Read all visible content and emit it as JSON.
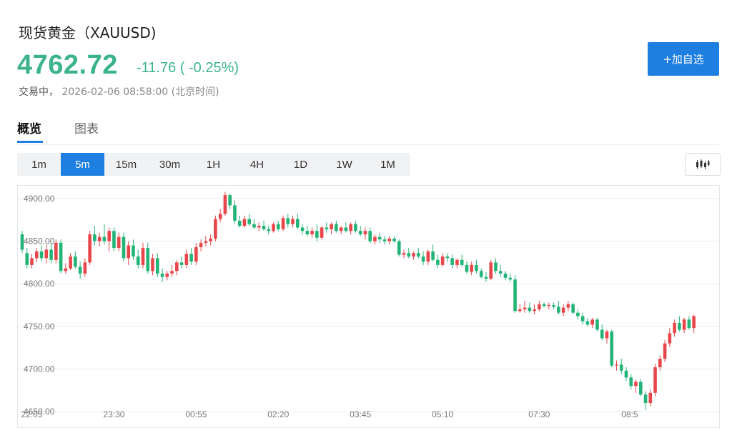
{
  "header": {
    "title": "现货黄金（XAUUSD)",
    "price": "4762.72",
    "change": "-11.76 ( -0.25%)",
    "status_label": "交易中，",
    "datetime": "2026-02-06 08:58:00",
    "timezone": "(北京时间)",
    "add_button": "+加自选"
  },
  "tabs": [
    {
      "label": "概览",
      "active": true
    },
    {
      "label": "图表",
      "active": false
    }
  ],
  "intervals": [
    {
      "label": "1m",
      "active": false
    },
    {
      "label": "5m",
      "active": true
    },
    {
      "label": "15m",
      "active": false
    },
    {
      "label": "30m",
      "active": false
    },
    {
      "label": "1H",
      "active": false
    },
    {
      "label": "4H",
      "active": false
    },
    {
      "label": "1D",
      "active": false
    },
    {
      "label": "1W",
      "active": false
    },
    {
      "label": "1M",
      "active": false
    }
  ],
  "chart_type_icon": "candlestick-icon",
  "colors": {
    "up": "#e8464a",
    "down": "#22b476",
    "accent": "#1e7fe0",
    "price": "#3cb48b"
  },
  "chart_data": {
    "type": "candlestick",
    "ylim": [
      4650,
      4915
    ],
    "y_ticks": [
      "4900.00",
      "4850.00",
      "4800.00",
      "4750.00",
      "4700.00",
      "4650.00"
    ],
    "y_tick_values": [
      4900,
      4850,
      4800,
      4750,
      4700,
      4650
    ],
    "x_ticks": [
      "22:05",
      "23:30",
      "00:55",
      "02:20",
      "03:45",
      "05:10",
      "07:30",
      "08:5"
    ],
    "x_tick_index": [
      2,
      19,
      36,
      53,
      70,
      87,
      107,
      124
    ],
    "candles": [
      [
        4858,
        4862,
        4836,
        4840
      ],
      [
        4836,
        4842,
        4818,
        4822
      ],
      [
        4822,
        4835,
        4818,
        4830
      ],
      [
        4830,
        4842,
        4825,
        4838
      ],
      [
        4838,
        4845,
        4826,
        4830
      ],
      [
        4830,
        4846,
        4824,
        4840
      ],
      [
        4840,
        4848,
        4824,
        4828
      ],
      [
        4828,
        4852,
        4824,
        4848
      ],
      [
        4848,
        4852,
        4812,
        4815
      ],
      [
        4815,
        4824,
        4812,
        4818
      ],
      [
        4818,
        4836,
        4816,
        4832
      ],
      [
        4832,
        4838,
        4818,
        4820
      ],
      [
        4820,
        4826,
        4806,
        4812
      ],
      [
        4812,
        4830,
        4808,
        4825
      ],
      [
        4825,
        4862,
        4822,
        4858
      ],
      [
        4858,
        4868,
        4845,
        4850
      ],
      [
        4850,
        4860,
        4844,
        4855
      ],
      [
        4855,
        4870,
        4846,
        4850
      ],
      [
        4850,
        4866,
        4838,
        4862
      ],
      [
        4862,
        4866,
        4838,
        4842
      ],
      [
        4842,
        4860,
        4838,
        4855
      ],
      [
        4855,
        4860,
        4826,
        4830
      ],
      [
        4830,
        4850,
        4822,
        4845
      ],
      [
        4845,
        4852,
        4828,
        4832
      ],
      [
        4832,
        4840,
        4818,
        4822
      ],
      [
        4822,
        4848,
        4818,
        4842
      ],
      [
        4842,
        4848,
        4812,
        4815
      ],
      [
        4815,
        4835,
        4810,
        4830
      ],
      [
        4830,
        4836,
        4808,
        4812
      ],
      [
        4812,
        4818,
        4802,
        4808
      ],
      [
        4808,
        4815,
        4804,
        4812
      ],
      [
        4812,
        4822,
        4808,
        4815
      ],
      [
        4815,
        4828,
        4810,
        4825
      ],
      [
        4825,
        4832,
        4818,
        4822
      ],
      [
        4822,
        4840,
        4818,
        4835
      ],
      [
        4835,
        4842,
        4822,
        4826
      ],
      [
        4826,
        4848,
        4822,
        4843
      ],
      [
        4843,
        4852,
        4838,
        4848
      ],
      [
        4848,
        4856,
        4844,
        4850
      ],
      [
        4850,
        4858,
        4845,
        4853
      ],
      [
        4853,
        4880,
        4850,
        4876
      ],
      [
        4876,
        4888,
        4872,
        4882
      ],
      [
        4882,
        4908,
        4880,
        4904
      ],
      [
        4904,
        4906,
        4888,
        4892
      ],
      [
        4892,
        4898,
        4870,
        4874
      ],
      [
        4874,
        4880,
        4866,
        4868
      ],
      [
        4868,
        4880,
        4866,
        4876
      ],
      [
        4876,
        4882,
        4868,
        4870
      ],
      [
        4870,
        4876,
        4864,
        4866
      ],
      [
        4866,
        4872,
        4862,
        4868
      ],
      [
        4868,
        4874,
        4862,
        4864
      ],
      [
        4864,
        4868,
        4858,
        4862
      ],
      [
        4862,
        4872,
        4860,
        4870
      ],
      [
        4870,
        4874,
        4862,
        4864
      ],
      [
        4864,
        4880,
        4862,
        4877
      ],
      [
        4877,
        4882,
        4866,
        4870
      ],
      [
        4870,
        4880,
        4866,
        4876
      ],
      [
        4876,
        4882,
        4864,
        4866
      ],
      [
        4866,
        4870,
        4858,
        4862
      ],
      [
        4862,
        4868,
        4856,
        4858
      ],
      [
        4858,
        4866,
        4854,
        4862
      ],
      [
        4862,
        4870,
        4850,
        4854
      ],
      [
        4854,
        4868,
        4852,
        4866
      ],
      [
        4866,
        4872,
        4860,
        4864
      ],
      [
        4864,
        4872,
        4858,
        4870
      ],
      [
        4870,
        4874,
        4860,
        4862
      ],
      [
        4862,
        4868,
        4858,
        4866
      ],
      [
        4866,
        4872,
        4860,
        4862
      ],
      [
        4862,
        4872,
        4858,
        4870
      ],
      [
        4870,
        4874,
        4860,
        4862
      ],
      [
        4862,
        4868,
        4856,
        4858
      ],
      [
        4858,
        4866,
        4852,
        4862
      ],
      [
        4862,
        4866,
        4848,
        4850
      ],
      [
        4850,
        4858,
        4846,
        4855
      ],
      [
        4855,
        4860,
        4848,
        4852
      ],
      [
        4852,
        4856,
        4846,
        4850
      ],
      [
        4850,
        4856,
        4846,
        4853
      ],
      [
        4853,
        4856,
        4848,
        4850
      ],
      [
        4850,
        4852,
        4832,
        4834
      ],
      [
        4834,
        4840,
        4830,
        4836
      ],
      [
        4836,
        4842,
        4830,
        4832
      ],
      [
        4832,
        4838,
        4828,
        4836
      ],
      [
        4836,
        4842,
        4830,
        4832
      ],
      [
        4832,
        4838,
        4822,
        4826
      ],
      [
        4826,
        4840,
        4822,
        4838
      ],
      [
        4838,
        4846,
        4826,
        4828
      ],
      [
        4828,
        4834,
        4818,
        4822
      ],
      [
        4822,
        4836,
        4820,
        4832
      ],
      [
        4832,
        4836,
        4826,
        4830
      ],
      [
        4830,
        4834,
        4818,
        4822
      ],
      [
        4822,
        4830,
        4818,
        4828
      ],
      [
        4828,
        4834,
        4820,
        4822
      ],
      [
        4822,
        4826,
        4812,
        4814
      ],
      [
        4814,
        4826,
        4810,
        4822
      ],
      [
        4822,
        4828,
        4812,
        4815
      ],
      [
        4815,
        4818,
        4806,
        4808
      ],
      [
        4808,
        4814,
        4802,
        4806
      ],
      [
        4806,
        4828,
        4804,
        4825
      ],
      [
        4825,
        4830,
        4812,
        4815
      ],
      [
        4815,
        4822,
        4808,
        4812
      ],
      [
        4812,
        4815,
        4804,
        4807
      ],
      [
        4807,
        4812,
        4802,
        4805
      ],
      [
        4805,
        4810,
        4766,
        4768
      ],
      [
        4768,
        4776,
        4766,
        4770
      ],
      [
        4770,
        4780,
        4766,
        4772
      ],
      [
        4772,
        4778,
        4766,
        4768
      ],
      [
        4768,
        4776,
        4764,
        4770
      ],
      [
        4770,
        4780,
        4768,
        4776
      ],
      [
        4776,
        4778,
        4772,
        4774
      ],
      [
        4774,
        4778,
        4770,
        4775
      ],
      [
        4775,
        4778,
        4770,
        4773
      ],
      [
        4773,
        4780,
        4764,
        4766
      ],
      [
        4766,
        4776,
        4762,
        4772
      ],
      [
        4772,
        4780,
        4768,
        4776
      ],
      [
        4776,
        4778,
        4764,
        4766
      ],
      [
        4766,
        4770,
        4758,
        4762
      ],
      [
        4762,
        4766,
        4752,
        4756
      ],
      [
        4756,
        4760,
        4750,
        4752
      ],
      [
        4752,
        4760,
        4748,
        4758
      ],
      [
        4758,
        4760,
        4744,
        4746
      ],
      [
        4746,
        4752,
        4734,
        4736
      ],
      [
        4736,
        4746,
        4730,
        4744
      ],
      [
        4744,
        4746,
        4702,
        4704
      ],
      [
        4704,
        4710,
        4698,
        4705
      ],
      [
        4705,
        4712,
        4694,
        4698
      ],
      [
        4698,
        4702,
        4686,
        4690
      ],
      [
        4690,
        4694,
        4676,
        4680
      ],
      [
        4680,
        4688,
        4672,
        4685
      ],
      [
        4685,
        4688,
        4668,
        4670
      ],
      [
        4670,
        4674,
        4652,
        4660
      ],
      [
        4660,
        4676,
        4656,
        4672
      ],
      [
        4672,
        4706,
        4668,
        4702
      ],
      [
        4702,
        4716,
        4698,
        4712
      ],
      [
        4712,
        4734,
        4708,
        4730
      ],
      [
        4730,
        4748,
        4726,
        4742
      ],
      [
        4742,
        4758,
        4738,
        4754
      ],
      [
        4754,
        4762,
        4744,
        4746
      ],
      [
        4746,
        4760,
        4742,
        4758
      ],
      [
        4758,
        4762,
        4746,
        4748
      ],
      [
        4748,
        4764,
        4742,
        4762
      ]
    ]
  }
}
